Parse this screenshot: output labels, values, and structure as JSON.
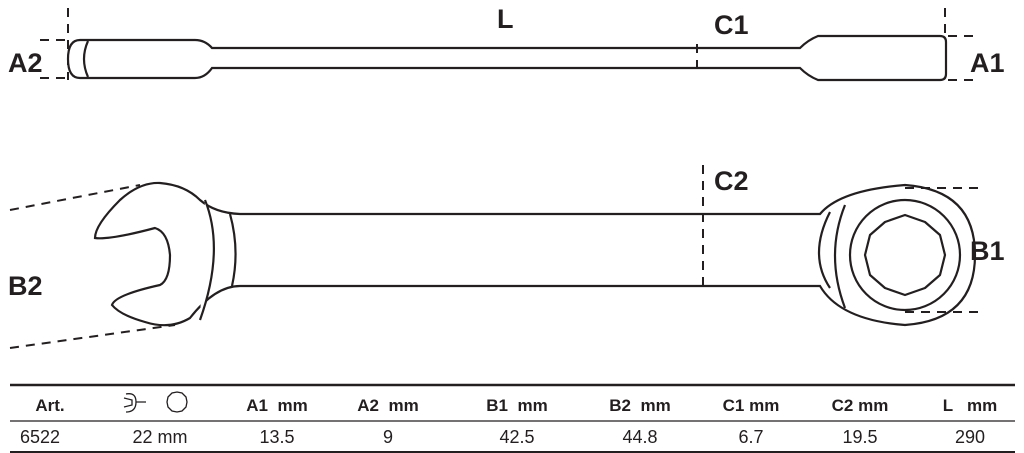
{
  "labels": {
    "L": "L",
    "C1": "C1",
    "A1": "A1",
    "A2": "A2",
    "C2": "C2",
    "B1": "B1",
    "B2": "B2"
  },
  "table": {
    "headers": [
      "Art.",
      "",
      "A1  mm",
      "A2  mm",
      "B1  mm",
      "B2  mm",
      "C1 mm",
      "C2 mm",
      "L   mm"
    ],
    "header_icons": [
      "open-end-wrench-icon",
      "ring-12-point-icon"
    ],
    "rows": [
      [
        "6522",
        "22 mm",
        "13.5",
        "9",
        "42.5",
        "44.8",
        "6.7",
        "19.5",
        "290"
      ]
    ]
  },
  "colors": {
    "line": "#231f20"
  }
}
